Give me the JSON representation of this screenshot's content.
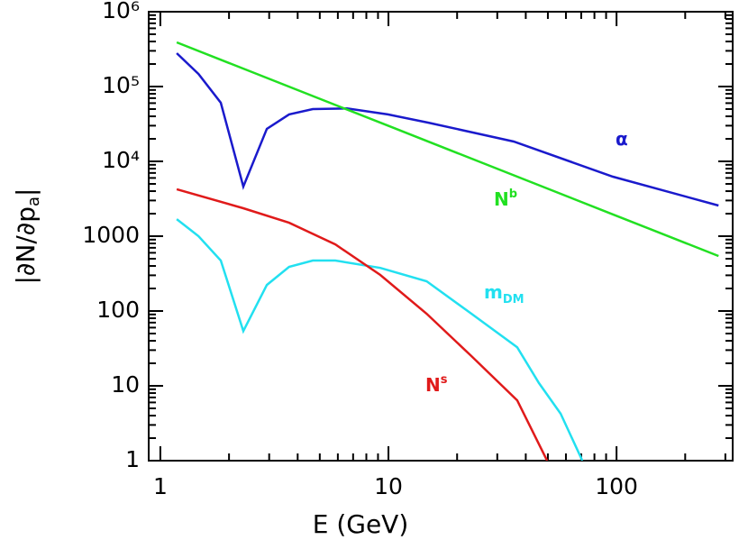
{
  "chart_data": {
    "type": "line",
    "xlabel": "E (GeV)",
    "ylabel": "|∂N/∂p",
    "ylabel_sub": "a",
    "ylabel_end": "|",
    "xscale": "log",
    "yscale": "log",
    "xlim": [
      0.889,
      323
    ],
    "ylim": [
      1,
      1000000
    ],
    "xticks": [
      1,
      10,
      100
    ],
    "xminorticks": [
      2,
      3,
      4,
      5,
      6,
      7,
      8,
      9,
      20,
      30,
      40,
      50,
      60,
      70,
      80,
      90,
      200,
      300
    ],
    "yticks": [
      1,
      10,
      100,
      1000,
      {
        "value": 10000,
        "label": "10⁴"
      },
      {
        "value": 100000,
        "label": "10⁵"
      },
      {
        "value": 1000000,
        "label": "10⁶"
      }
    ],
    "yminorticks": [
      2,
      3,
      4,
      5,
      6,
      7,
      8,
      9,
      20,
      30,
      40,
      50,
      60,
      70,
      80,
      90,
      200,
      300,
      400,
      500,
      600,
      700,
      800,
      900,
      2000,
      3000,
      4000,
      5000,
      6000,
      7000,
      8000,
      9000,
      20000,
      30000,
      40000,
      50000,
      60000,
      70000,
      80000,
      90000,
      200000,
      300000,
      400000,
      500000,
      600000,
      700000,
      800000,
      900000
    ],
    "series": [
      {
        "name": "α",
        "color": "#1a1acc",
        "x": [
          1.18,
          1.47,
          1.84,
          2.31,
          2.93,
          3.67,
          4.66,
          6.58,
          9.93,
          14.9,
          35.4,
          96.4,
          280
        ],
        "values": [
          279000,
          147000,
          60700,
          4600,
          27200,
          42400,
          50000,
          51000,
          42400,
          33000,
          18400,
          6240,
          2570
        ]
      },
      {
        "name": "N",
        "name_sup": "b",
        "color": "#22e022",
        "x": [
          1.18,
          10,
          100,
          280
        ],
        "values": [
          389000,
          29800,
          1870,
          543
        ]
      },
      {
        "name": "m",
        "name_sub": "DM",
        "color": "#22e0f0",
        "x": [
          1.18,
          1.47,
          1.84,
          2.31,
          2.93,
          3.67,
          4.66,
          5.85,
          9.21,
          14.7,
          23.1,
          36.7,
          45.7,
          56.9,
          70.8
        ],
        "values": [
          1690,
          1000,
          473,
          54,
          223,
          389,
          473,
          473,
          377,
          250,
          92,
          32.8,
          10.9,
          4.24,
          1
        ]
      },
      {
        "name": "N",
        "name_sup": "s",
        "color": "#e01a1a",
        "x": [
          1.18,
          2.31,
          3.67,
          5.85,
          9.21,
          14.7,
          23.1,
          36.7,
          49.6
        ],
        "values": [
          4240,
          2360,
          1510,
          777,
          303,
          92,
          25,
          6.4,
          1
        ]
      }
    ]
  }
}
